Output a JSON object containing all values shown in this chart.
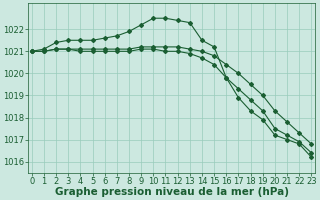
{
  "title": "Graphe pression niveau de la mer (hPa)",
  "bg_color": "#cce8e0",
  "grid_color": "#99ccbb",
  "line_color": "#1a5e32",
  "ylim": [
    1015.5,
    1023.2
  ],
  "xlim": [
    -0.3,
    23.3
  ],
  "yticks": [
    1016,
    1017,
    1018,
    1019,
    1020,
    1021,
    1022
  ],
  "xticks": [
    0,
    1,
    2,
    3,
    4,
    5,
    6,
    7,
    8,
    9,
    10,
    11,
    12,
    13,
    14,
    15,
    16,
    17,
    18,
    19,
    20,
    21,
    22,
    23
  ],
  "series1": [
    1021.0,
    1021.1,
    1021.4,
    1021.5,
    1021.5,
    1021.5,
    1021.6,
    1021.7,
    1021.9,
    1022.2,
    1022.5,
    1022.5,
    1022.4,
    1022.3,
    1021.5,
    1021.2,
    1019.8,
    1018.9,
    1018.3,
    1017.9,
    1017.2,
    1017.0,
    1016.8,
    1016.2
  ],
  "series2": [
    1021.0,
    1021.0,
    1021.1,
    1021.1,
    1021.1,
    1021.1,
    1021.1,
    1021.1,
    1021.1,
    1021.2,
    1021.2,
    1021.2,
    1021.2,
    1021.1,
    1021.0,
    1020.8,
    1020.4,
    1020.0,
    1019.5,
    1019.0,
    1018.3,
    1017.8,
    1017.3,
    1016.8
  ],
  "series3": [
    1021.0,
    1021.0,
    1021.1,
    1021.1,
    1021.0,
    1021.0,
    1021.0,
    1021.0,
    1021.0,
    1021.1,
    1021.1,
    1021.0,
    1021.0,
    1020.9,
    1020.7,
    1020.4,
    1019.8,
    1019.3,
    1018.8,
    1018.3,
    1017.5,
    1017.2,
    1016.9,
    1016.4
  ],
  "title_fontsize": 7.5,
  "tick_fontsize": 6
}
